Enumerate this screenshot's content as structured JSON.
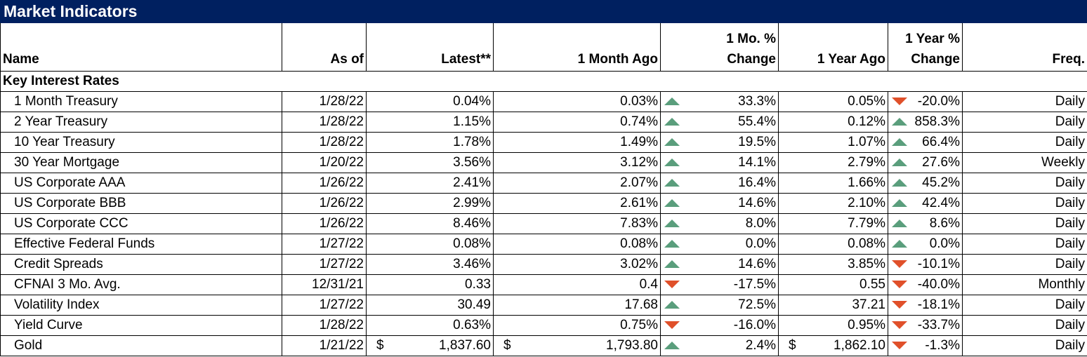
{
  "title": "Market Indicators",
  "columns": {
    "name": "Name",
    "as_of": "As of",
    "latest": "Latest**",
    "month_ago": "1 Month Ago",
    "mo_change_1": "1 Mo. %",
    "mo_change_2": "Change",
    "year_ago": "1 Year Ago",
    "yr_change_1": "1 Year %",
    "yr_change_2": "Change",
    "freq": "Freq."
  },
  "section": "Key Interest Rates",
  "colors": {
    "header_bg": "#002060",
    "up": "#5a9e7c",
    "down": "#e0502a"
  },
  "rows": [
    {
      "name": "1 Month Treasury",
      "as_of": "1/28/22",
      "latest": "0.04%",
      "month_ago": "0.03%",
      "mo_dir": "up",
      "mo_change": "33.3%",
      "year_ago": "0.05%",
      "yr_dir": "down",
      "yr_change": "-20.0%",
      "freq": "Daily"
    },
    {
      "name": "2 Year Treasury",
      "as_of": "1/28/22",
      "latest": "1.15%",
      "month_ago": "0.74%",
      "mo_dir": "up",
      "mo_change": "55.4%",
      "year_ago": "0.12%",
      "yr_dir": "up",
      "yr_change": "858.3%",
      "freq": "Daily"
    },
    {
      "name": "10 Year Treasury",
      "as_of": "1/28/22",
      "latest": "1.78%",
      "month_ago": "1.49%",
      "mo_dir": "up",
      "mo_change": "19.5%",
      "year_ago": "1.07%",
      "yr_dir": "up",
      "yr_change": "66.4%",
      "freq": "Daily"
    },
    {
      "name": "30 Year Mortgage",
      "as_of": "1/20/22",
      "latest": "3.56%",
      "month_ago": "3.12%",
      "mo_dir": "up",
      "mo_change": "14.1%",
      "year_ago": "2.79%",
      "yr_dir": "up",
      "yr_change": "27.6%",
      "freq": "Weekly"
    },
    {
      "name": "US Corporate AAA",
      "as_of": "1/26/22",
      "latest": "2.41%",
      "month_ago": "2.07%",
      "mo_dir": "up",
      "mo_change": "16.4%",
      "year_ago": "1.66%",
      "yr_dir": "up",
      "yr_change": "45.2%",
      "freq": "Daily"
    },
    {
      "name": "US Corporate BBB",
      "as_of": "1/26/22",
      "latest": "2.99%",
      "month_ago": "2.61%",
      "mo_dir": "up",
      "mo_change": "14.6%",
      "year_ago": "2.10%",
      "yr_dir": "up",
      "yr_change": "42.4%",
      "freq": "Daily"
    },
    {
      "name": "US Corporate CCC",
      "as_of": "1/26/22",
      "latest": "8.46%",
      "month_ago": "7.83%",
      "mo_dir": "up",
      "mo_change": "8.0%",
      "year_ago": "7.79%",
      "yr_dir": "up",
      "yr_change": "8.6%",
      "freq": "Daily"
    },
    {
      "name": "Effective Federal Funds",
      "as_of": "1/27/22",
      "latest": "0.08%",
      "month_ago": "0.08%",
      "mo_dir": "up",
      "mo_change": "0.0%",
      "year_ago": "0.08%",
      "yr_dir": "up",
      "yr_change": "0.0%",
      "freq": "Daily"
    },
    {
      "name": "Credit Spreads",
      "as_of": "1/27/22",
      "latest": "3.46%",
      "month_ago": "3.02%",
      "mo_dir": "up",
      "mo_change": "14.6%",
      "year_ago": "3.85%",
      "yr_dir": "down",
      "yr_change": "-10.1%",
      "freq": "Daily"
    },
    {
      "name": "CFNAI 3 Mo. Avg.",
      "as_of": "12/31/21",
      "latest": "0.33",
      "month_ago": "0.4",
      "mo_dir": "down",
      "mo_change": "-17.5%",
      "year_ago": "0.55",
      "yr_dir": "down",
      "yr_change": "-40.0%",
      "freq": "Monthly"
    },
    {
      "name": "Volatility Index",
      "as_of": "1/27/22",
      "latest": "30.49",
      "month_ago": "17.68",
      "mo_dir": "up",
      "mo_change": "72.5%",
      "year_ago": "37.21",
      "yr_dir": "down",
      "yr_change": "-18.1%",
      "freq": "Daily"
    },
    {
      "name": "Yield Curve",
      "as_of": "1/28/22",
      "latest": "0.63%",
      "month_ago": "0.75%",
      "mo_dir": "down",
      "mo_change": "-16.0%",
      "year_ago": "0.95%",
      "yr_dir": "down",
      "yr_change": "-33.7%",
      "freq": "Daily"
    },
    {
      "name": "Gold",
      "as_of": "1/21/22",
      "currency": "$",
      "latest": "1,837.60",
      "month_ago": "1,793.80",
      "mo_dir": "up",
      "mo_change": "2.4%",
      "year_ago": "1,862.10",
      "yr_dir": "down",
      "yr_change": "-1.3%",
      "freq": "Daily"
    }
  ]
}
